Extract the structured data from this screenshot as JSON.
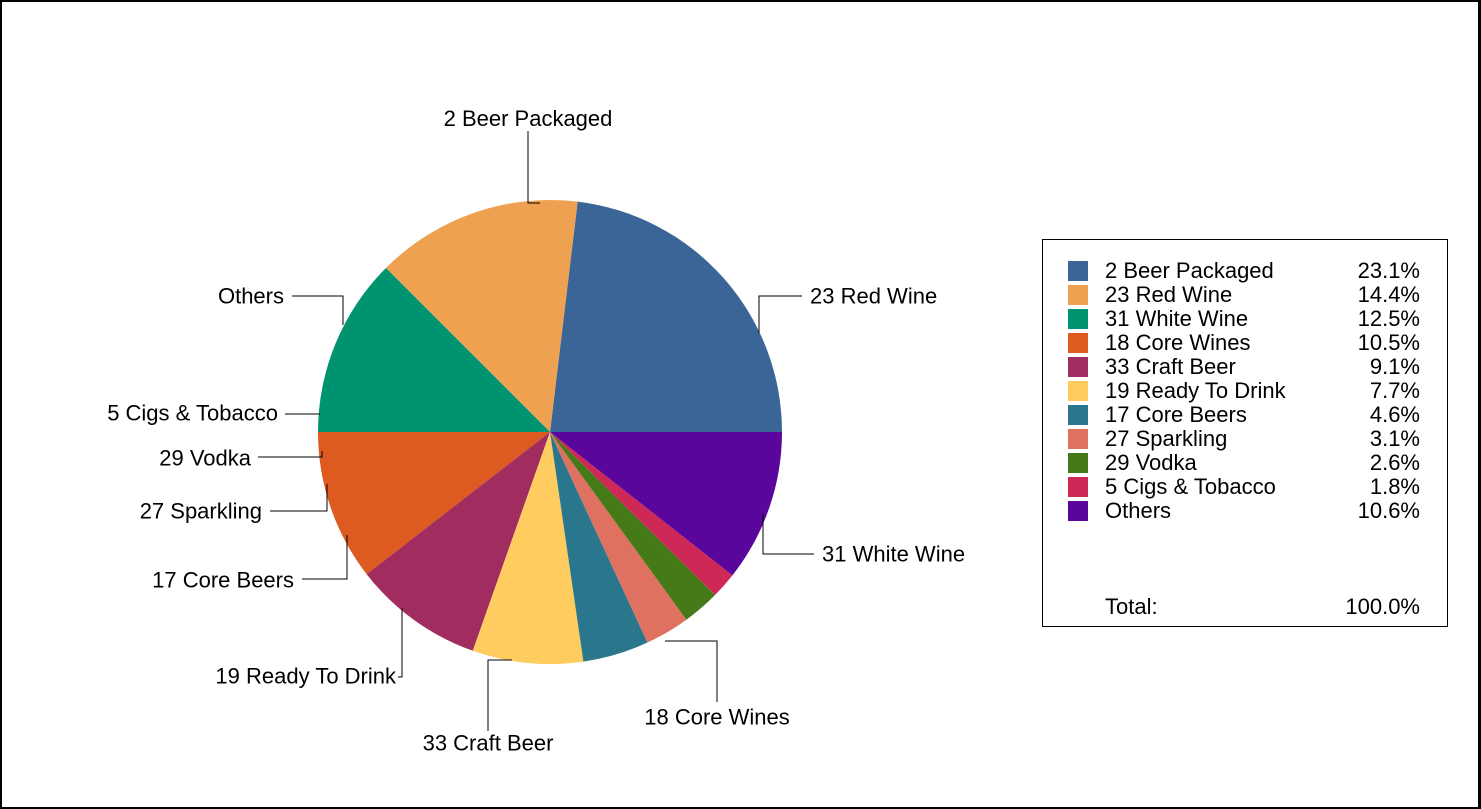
{
  "chart_data": {
    "type": "pie",
    "slices": [
      {
        "label": "2 Beer Packaged",
        "value": 23.1,
        "percent_label": "23.1%",
        "color": "#3a6596"
      },
      {
        "label": "23 Red Wine",
        "value": 14.4,
        "percent_label": "14.4%",
        "color": "#eea251"
      },
      {
        "label": "31 White Wine",
        "value": 12.5,
        "percent_label": "12.5%",
        "color": "#009370"
      },
      {
        "label": "18 Core Wines",
        "value": 10.5,
        "percent_label": "10.5%",
        "color": "#dd5a20"
      },
      {
        "label": "33 Craft Beer",
        "value": 9.1,
        "percent_label": "9.1%",
        "color": "#a12c5f"
      },
      {
        "label": "19 Ready To Drink",
        "value": 7.7,
        "percent_label": "7.7%",
        "color": "#fecc5f"
      },
      {
        "label": "17 Core Beers",
        "value": 4.6,
        "percent_label": "4.6%",
        "color": "#2a778d"
      },
      {
        "label": "27 Sparkling",
        "value": 3.1,
        "percent_label": "3.1%",
        "color": "#df7160"
      },
      {
        "label": "29 Vodka",
        "value": 2.6,
        "percent_label": "2.6%",
        "color": "#447a17"
      },
      {
        "label": "5 Cigs & Tobacco",
        "value": 1.8,
        "percent_label": "1.8%",
        "color": "#ce2856"
      },
      {
        "label": "Others",
        "value": 10.6,
        "percent_label": "10.6%",
        "color": "#5a069c"
      }
    ],
    "legend": {
      "placement": "right",
      "total_label": "Total:",
      "total_value": "100.0%"
    }
  }
}
